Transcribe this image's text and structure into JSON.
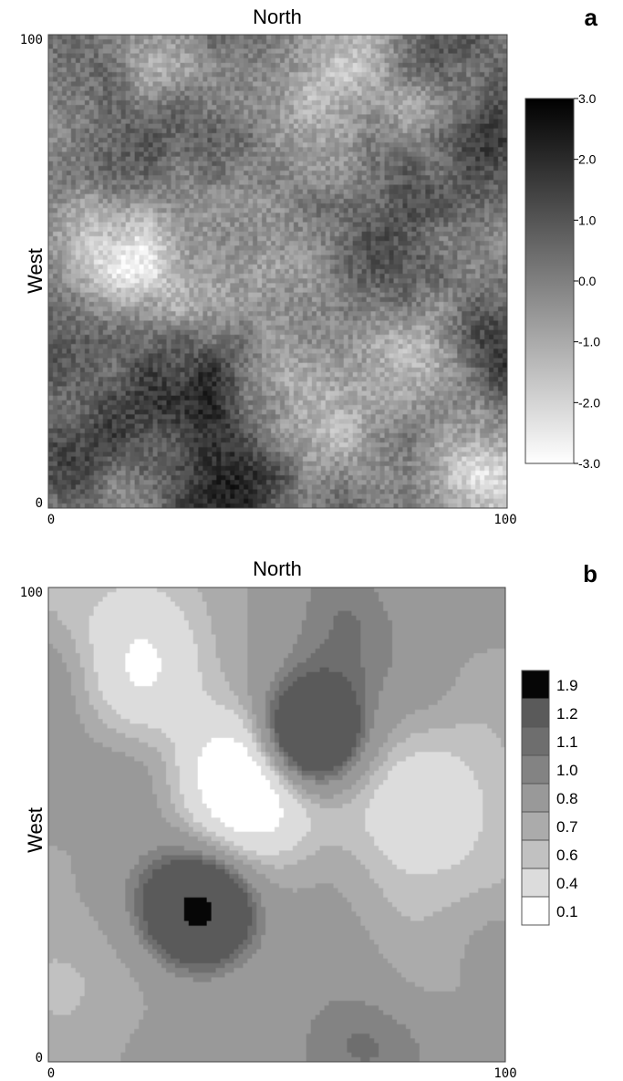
{
  "chart_data": [
    {
      "type": "heatmap",
      "panel_label": "a",
      "title": "North",
      "ylabel": "West",
      "xlim": [
        0,
        100
      ],
      "ylim": [
        0,
        100
      ],
      "x_ticks": [
        "0",
        "100"
      ],
      "y_ticks": [
        "0",
        "100"
      ],
      "colormap": "grayscale, white = -3.0, black = 3.0",
      "colorbar": {
        "range": [
          -3.0,
          3.0
        ],
        "ticks": [
          "3.0",
          "2.0",
          "1.0",
          "0.0",
          "-1.0",
          "-2.0",
          "-3.0"
        ]
      },
      "dark_regions": [
        {
          "x": 32,
          "y": 28,
          "v": 1.8
        },
        {
          "x": 45,
          "y": 3,
          "v": 2.2
        },
        {
          "x": 4,
          "y": 12,
          "v": 1.5
        },
        {
          "x": 72,
          "y": 52,
          "v": 1.8
        },
        {
          "x": 97,
          "y": 78,
          "v": 1.5
        },
        {
          "x": 5,
          "y": 95,
          "v": 1.2
        },
        {
          "x": 26,
          "y": 82,
          "v": 1.0
        },
        {
          "x": 97,
          "y": 35,
          "v": 1.2
        }
      ],
      "light_regions": [
        {
          "x": 23,
          "y": 95,
          "v": -1.5
        },
        {
          "x": 15,
          "y": 55,
          "v": -1.8
        },
        {
          "x": 33,
          "y": 47,
          "v": -1.6
        },
        {
          "x": 95,
          "y": 8,
          "v": -2.2
        },
        {
          "x": 55,
          "y": 18,
          "v": -1.6
        },
        {
          "x": 63,
          "y": 88,
          "v": -1.4
        },
        {
          "x": 80,
          "y": 30,
          "v": -1.5
        }
      ]
    },
    {
      "type": "heatmap",
      "panel_label": "b",
      "title": "North",
      "ylabel": "West",
      "xlim": [
        0,
        100
      ],
      "ylim": [
        0,
        100
      ],
      "x_ticks": [
        "0",
        "100"
      ],
      "y_ticks": [
        "0",
        "100"
      ],
      "legend": {
        "levels": [
          "1.9",
          "1.2",
          "1.1",
          "1.0",
          "0.8",
          "0.7",
          "0.6",
          "0.4",
          "0.1"
        ],
        "colors": [
          "#060606",
          "#5a5a5a",
          "#6e6e6e",
          "#838383",
          "#999999",
          "#ababab",
          "#c1c1c1",
          "#dcdcdc",
          "#ffffff"
        ]
      },
      "regions": [
        {
          "x": 33,
          "y": 32,
          "v": 1.9
        },
        {
          "x": 57,
          "y": 68,
          "v": 1.9
        },
        {
          "x": 45,
          "y": 60,
          "v": 0.1
        },
        {
          "x": 20,
          "y": 85,
          "v": 0.45
        },
        {
          "x": 82,
          "y": 55,
          "v": 0.45
        },
        {
          "x": 70,
          "y": 95,
          "v": 1.0
        },
        {
          "x": 70,
          "y": 5,
          "v": 0.95
        },
        {
          "x": 5,
          "y": 3,
          "v": 0.65
        },
        {
          "x": 95,
          "y": 8,
          "v": 0.7
        }
      ]
    }
  ]
}
